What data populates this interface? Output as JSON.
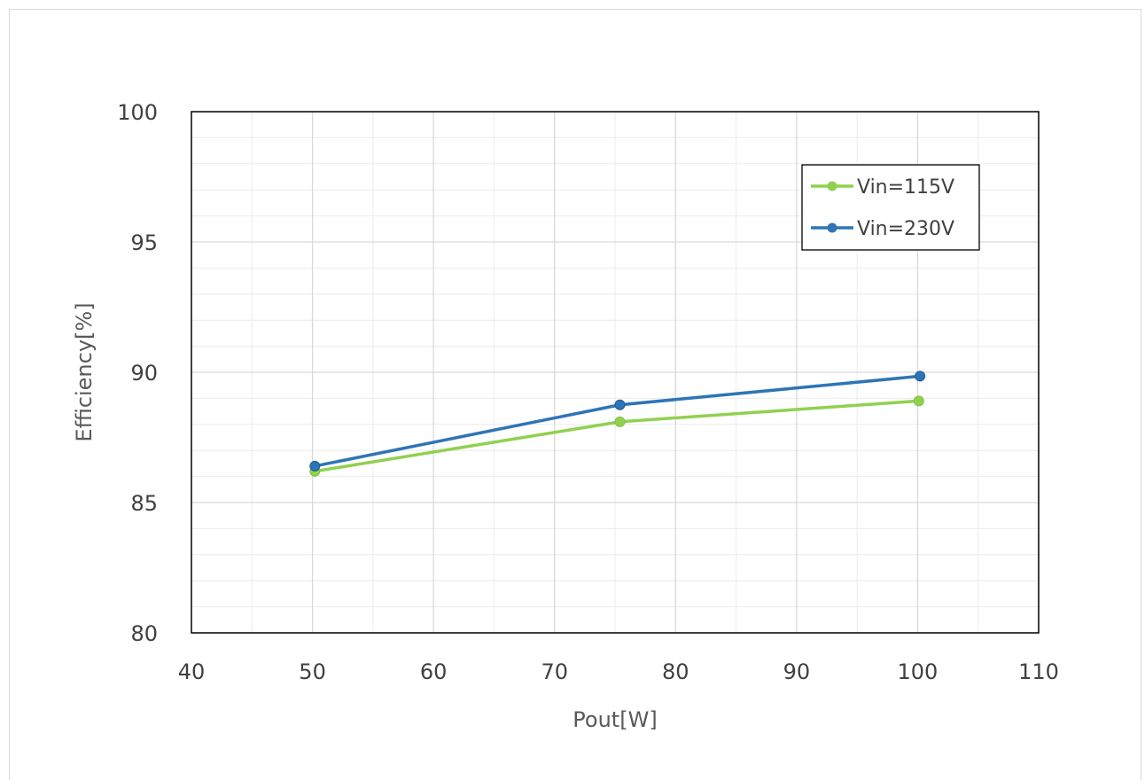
{
  "chart_data": {
    "type": "line",
    "title": "",
    "xlabel": "Pout[W]",
    "ylabel": "Efficiency[%]",
    "xlim": [
      40,
      110
    ],
    "ylim": [
      80,
      100
    ],
    "x_major_step": 10,
    "x_minor_step": 5,
    "y_major_step": 5,
    "y_minor_step": 1,
    "grid": true,
    "legend_position": "top-right",
    "x_ticks": [
      "40",
      "50",
      "60",
      "70",
      "80",
      "90",
      "100",
      "110"
    ],
    "y_ticks": [
      "80",
      "85",
      "90",
      "95",
      "100"
    ],
    "series": [
      {
        "name": "Vin=115V",
        "color": "#92d050",
        "x": [
          50.2,
          75.4,
          100.1
        ],
        "y": [
          86.2,
          88.1,
          88.9
        ]
      },
      {
        "name": "Vin=230V",
        "color": "#2e75b6",
        "x": [
          50.2,
          75.4,
          100.2
        ],
        "y": [
          86.4,
          88.75,
          89.85
        ]
      }
    ]
  }
}
